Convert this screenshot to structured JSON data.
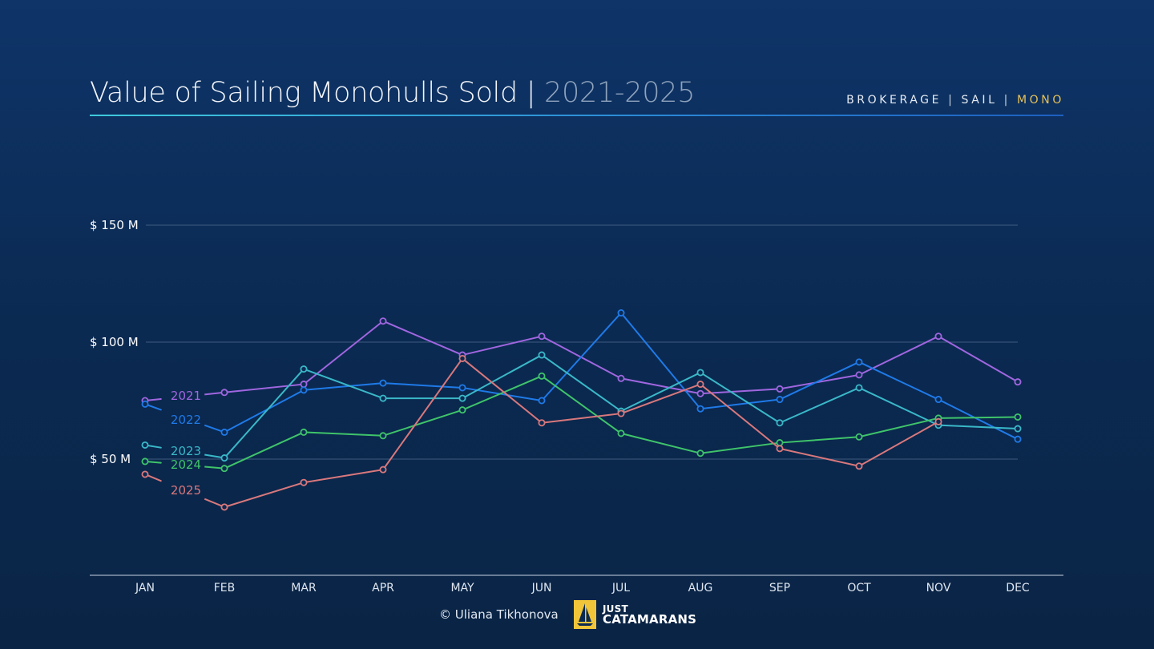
{
  "header": {
    "title_main": "Value of Sailing Monohulls Sold | ",
    "title_years": "2021-2025",
    "tag_1": "BROKERAGE",
    "tag_2": "SAIL",
    "tag_3": "MONO",
    "tag_sep": "|"
  },
  "footer": {
    "credit": "© Uliana Tikhonova",
    "logo_line1": "JUST",
    "logo_line2": "CATAMARANS"
  },
  "colors": {
    "accent": "#e6c25a",
    "grid": "#3f5a80",
    "axis": "#c8d2e0",
    "s2021": "#a066e0",
    "s2022": "#1f7ae8",
    "s2023": "#3ab8c8",
    "s2024": "#3fc46a",
    "s2025": "#d9787c"
  },
  "chart_data": {
    "type": "line",
    "title": "Value of Sailing Monohulls Sold | 2021-2025",
    "xlabel": "",
    "ylabel": "",
    "categories": [
      "JAN",
      "FEB",
      "MAR",
      "APR",
      "MAY",
      "JUN",
      "JUL",
      "AUG",
      "SEP",
      "OCT",
      "NOV",
      "DEC"
    ],
    "ylim": [
      0,
      150
    ],
    "yticks": [
      {
        "value": 50,
        "label": "$ 50 M"
      },
      {
        "value": 100,
        "label": "$ 100 M"
      },
      {
        "value": 150,
        "label": "$ 150 M"
      }
    ],
    "grid": true,
    "legend": "inline-left",
    "series": [
      {
        "name": "2021",
        "color": "#a066e0",
        "values": [
          75,
          78.5,
          82,
          109,
          94.5,
          102.5,
          84.5,
          78,
          80,
          86,
          102.5,
          83
        ]
      },
      {
        "name": "2022",
        "color": "#1f7ae8",
        "values": [
          73.5,
          61.5,
          79.5,
          82.5,
          80.5,
          75,
          112.5,
          71.5,
          75.5,
          91.5,
          75.5,
          58.5
        ]
      },
      {
        "name": "2023",
        "color": "#3ab8c8",
        "values": [
          56,
          50.5,
          88.5,
          76,
          76,
          94.5,
          70.5,
          87,
          65.5,
          80.5,
          64.5,
          63
        ]
      },
      {
        "name": "2024",
        "color": "#3fc46a",
        "values": [
          49,
          46,
          61.5,
          60,
          71,
          85.5,
          61,
          52.5,
          57,
          59.5,
          67.5,
          68
        ]
      },
      {
        "name": "2025",
        "color": "#d9787c",
        "values": [
          43.5,
          29.5,
          40,
          45.5,
          93,
          65.5,
          69.5,
          82,
          54.5,
          47,
          66,
          null
        ]
      }
    ]
  }
}
